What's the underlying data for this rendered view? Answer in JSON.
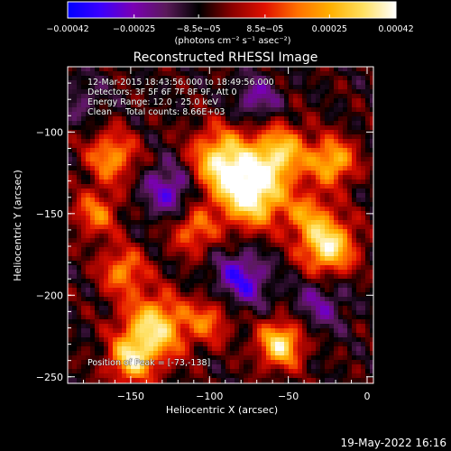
{
  "chart_data": {
    "type": "heatmap",
    "title": "Reconstructed RHESSI Image",
    "xlabel": "Heliocentric X (arcsec)",
    "ylabel": "Heliocentric Y (arcsec)",
    "xlim": [
      -190,
      4
    ],
    "ylim": [
      -254,
      -60
    ],
    "xticks": [
      -150,
      -100,
      -50,
      0
    ],
    "xtick_labels": [
      "−150",
      "−100",
      "−50",
      "0"
    ],
    "yticks": [
      -250,
      -200,
      -150,
      -100
    ],
    "ytick_labels": [
      "−250",
      "−200",
      "−150",
      "−100"
    ],
    "colorbar": {
      "range": [
        -0.00042,
        0.00042
      ],
      "tick_values": [
        -0.00042,
        -0.00025,
        -8.5e-05,
        8.5e-05,
        0.00025,
        0.00042
      ],
      "tick_labels": [
        "−0.00042",
        "−0.00025",
        "−8.5e−05",
        "8.5e−05",
        "0.00025",
        "0.00042"
      ],
      "unit_label": "(photons cm⁻² s⁻¹ asec⁻²)",
      "colors": [
        "#0000ff",
        "#3b00ff",
        "#7a00b3",
        "#5a1a5a",
        "#000000",
        "#8a0000",
        "#e01000",
        "#ff7000",
        "#ffb000",
        "#ffe060",
        "#ffffff"
      ]
    },
    "sources": [
      {
        "x": -73,
        "y": -138,
        "sigma": 14,
        "amp": 1.0
      },
      {
        "x": -92,
        "y": -118,
        "sigma": 14,
        "amp": 0.85
      },
      {
        "x": -55,
        "y": -113,
        "sigma": 12,
        "amp": 0.75
      },
      {
        "x": -22,
        "y": -118,
        "sigma": 10,
        "amp": 0.72
      },
      {
        "x": -38,
        "y": -150,
        "sigma": 10,
        "amp": 0.45
      },
      {
        "x": -25,
        "y": -170,
        "sigma": 12,
        "amp": 0.9
      },
      {
        "x": -110,
        "y": -160,
        "sigma": 10,
        "amp": 0.5
      },
      {
        "x": -162,
        "y": -115,
        "sigma": 11,
        "amp": 0.6
      },
      {
        "x": -172,
        "y": -150,
        "sigma": 10,
        "amp": 0.5
      },
      {
        "x": -155,
        "y": -185,
        "sigma": 10,
        "amp": 0.55
      },
      {
        "x": -135,
        "y": -220,
        "sigma": 14,
        "amp": 0.85
      },
      {
        "x": -150,
        "y": -240,
        "sigma": 10,
        "amp": 0.7
      },
      {
        "x": -55,
        "y": -230,
        "sigma": 10,
        "amp": 0.85
      },
      {
        "x": -100,
        "y": -215,
        "sigma": 10,
        "amp": 0.45
      },
      {
        "x": -80,
        "y": -190,
        "sigma": 12,
        "amp": -0.5
      },
      {
        "x": -125,
        "y": -135,
        "sigma": 12,
        "amp": -0.45
      },
      {
        "x": -70,
        "y": -80,
        "sigma": 10,
        "amp": -0.35
      },
      {
        "x": -30,
        "y": -205,
        "sigma": 12,
        "amp": -0.3
      },
      {
        "x": -180,
        "y": -80,
        "sigma": 10,
        "amp": -0.2
      }
    ],
    "peak": {
      "x": -73,
      "y": -138
    }
  },
  "annotations": {
    "line1": "12-Mar-2015 18:43:56.000 to 18:49:56.000",
    "line2": "Detectors: 3F 5F 6F 7F 8F 9F, Att 0",
    "line3": "Energy Range: 12.0 - 25.0 keV",
    "line4": "Clean     Total counts: 8.66E+03",
    "peak_label": "Position of Peak = [-73,-138]"
  },
  "footer": {
    "date": "19-May-2022 16:16"
  }
}
